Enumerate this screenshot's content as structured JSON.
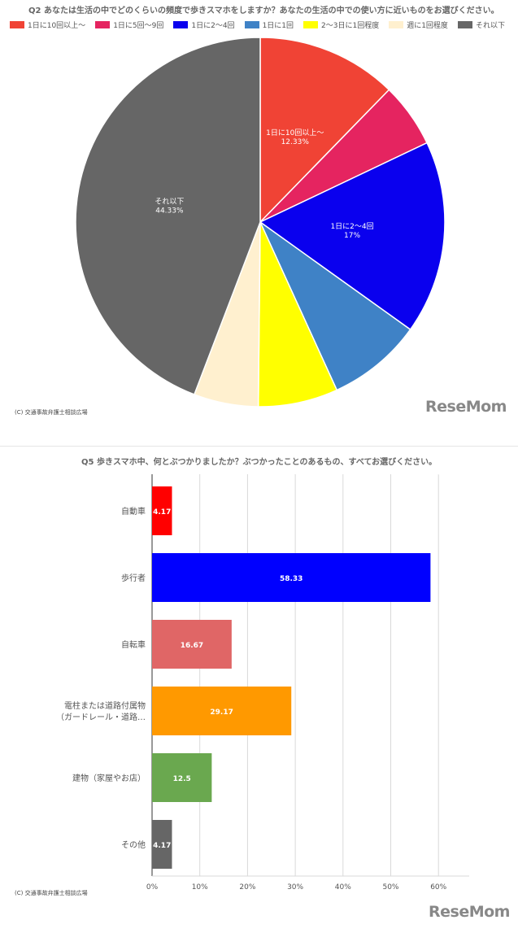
{
  "chart1": {
    "title": "Q2 あなたは生活の中でどのくらいの頻度で歩きスマホをしますか？あなたの生活の中での使い方に近いものをお選びください。",
    "credit": "(C) 交通事故弁護士相談広場",
    "brand": "ReseMom"
  },
  "chart2": {
    "title": "Q5 歩きスマホ中、何とぶつかりましたか？ぶつかったことのあるもの、すべてお選びください。",
    "credit": "(C) 交通事故弁護士相談広場",
    "brand": "ReseMom"
  },
  "chart_data": [
    {
      "type": "pie",
      "title": "Q2 あなたは生活の中でどのくらいの頻度で歩きスマホをしますか？あなたの生活の中での使い方に近いものをお選びください。",
      "legend_position": "top",
      "slices": [
        {
          "label": "1日に10回以上～",
          "value": 12.33,
          "color": "#f04335",
          "data_label": "12.33%"
        },
        {
          "label": "1日に5回～9回",
          "value": 5.67,
          "color": "#e52460",
          "data_label": ""
        },
        {
          "label": "1日に2～4回",
          "value": 17,
          "color": "#0a00ee",
          "data_label": "17%"
        },
        {
          "label": "1日に1回",
          "value": 8.33,
          "color": "#3f82c6",
          "data_label": ""
        },
        {
          "label": "2～3日に1回程度",
          "value": 7,
          "color": "#ffff00",
          "data_label": ""
        },
        {
          "label": "週に1回程度",
          "value": 5.67,
          "color": "#fff0cf",
          "data_label": ""
        },
        {
          "label": "それ以下",
          "value": 44.33,
          "color": "#666666",
          "data_label": "44.33%"
        }
      ]
    },
    {
      "type": "bar",
      "orientation": "horizontal",
      "title": "Q5 歩きスマホ中、何とぶつかりましたか？ぶつかったことのあるもの、すべてお選びください。",
      "xlim": [
        0,
        60
      ],
      "xticks": [
        "0%",
        "10%",
        "20%",
        "30%",
        "40%",
        "50%",
        "60%"
      ],
      "grid": true,
      "categories": [
        {
          "lines": [
            "自動車"
          ],
          "value": 4.17,
          "color": "#ff0000",
          "label": "4.17"
        },
        {
          "lines": [
            "歩行者"
          ],
          "value": 58.33,
          "color": "#0000ff",
          "label": "58.33"
        },
        {
          "lines": [
            "自転車"
          ],
          "value": 16.67,
          "color": "#e06666",
          "label": "16.67"
        },
        {
          "lines": [
            "電柱または道路付属物",
            "（ガードレール・道路…"
          ],
          "value": 29.17,
          "color": "#ff9900",
          "label": "29.17"
        },
        {
          "lines": [
            "建物（家屋やお店）"
          ],
          "value": 12.5,
          "color": "#6aa84f",
          "label": "12.5"
        },
        {
          "lines": [
            "その他"
          ],
          "value": 4.17,
          "color": "#666666",
          "label": "4.17"
        }
      ]
    }
  ]
}
